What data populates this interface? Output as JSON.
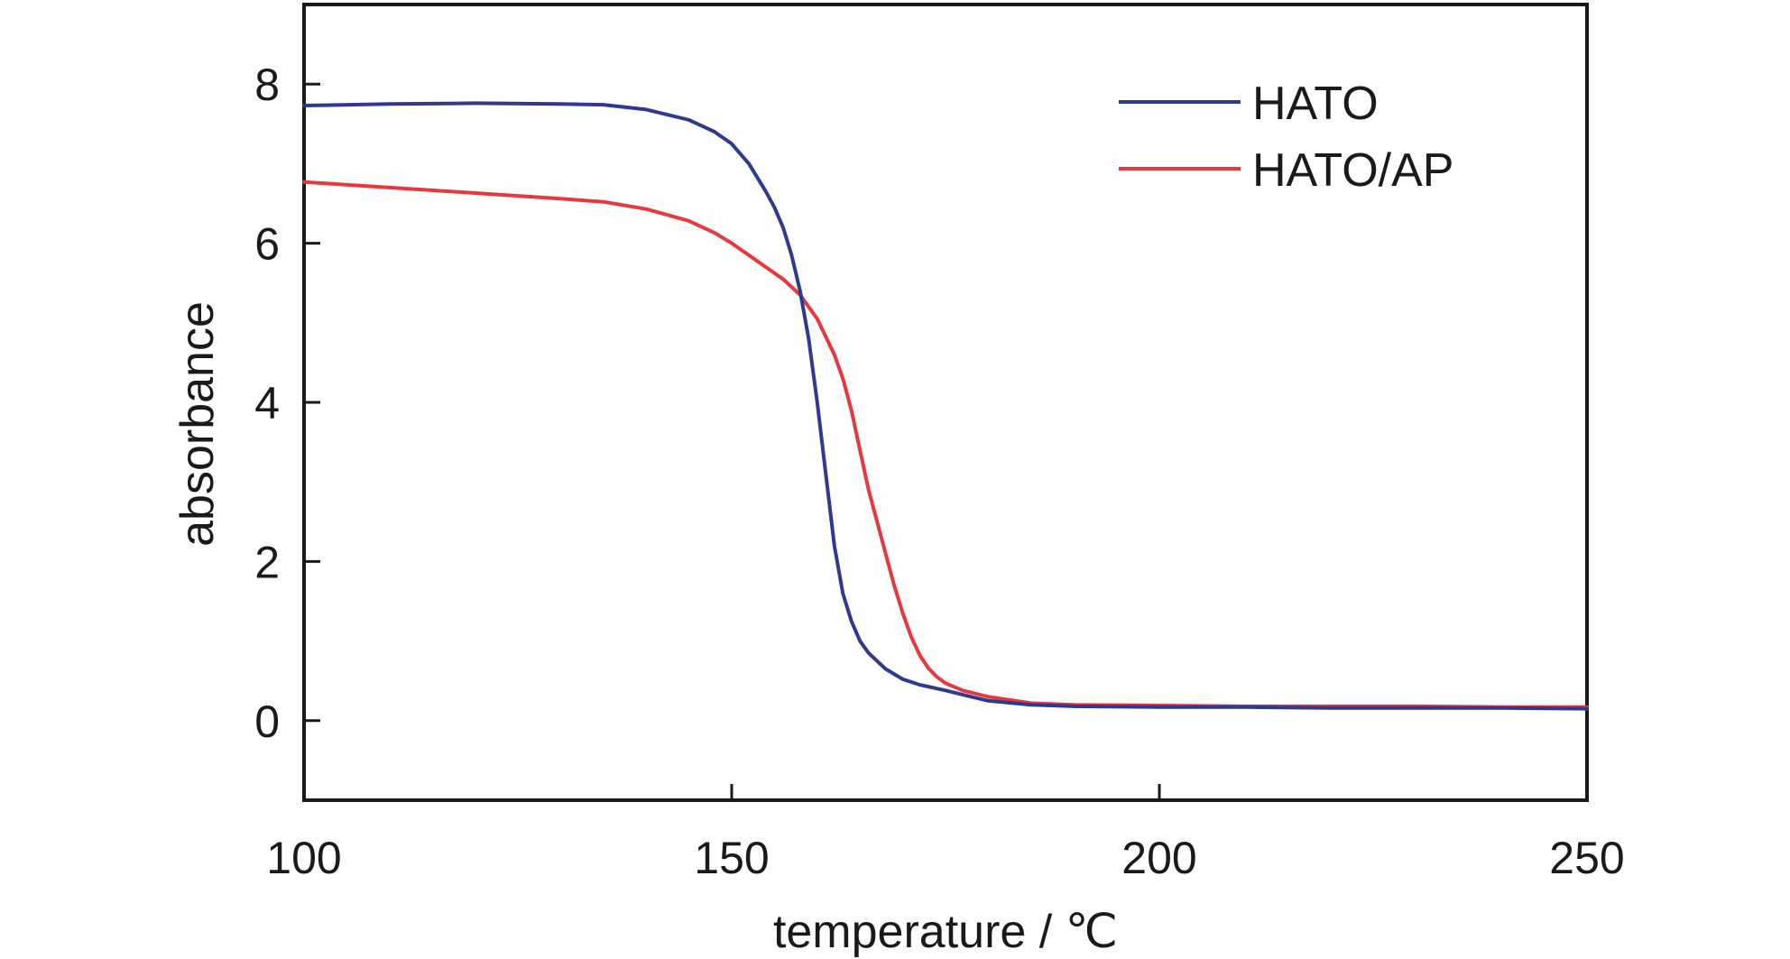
{
  "chart_data": {
    "type": "line",
    "xlabel": "temperature / ℃",
    "ylabel": "absorbance",
    "xlim": [
      100,
      250
    ],
    "ylim": [
      -1,
      9
    ],
    "xticks": [
      100,
      150,
      200,
      250
    ],
    "yticks": [
      0,
      2,
      4,
      6,
      8
    ],
    "grid": false,
    "legend_position": "top-right",
    "series": [
      {
        "name": "HATO",
        "color": "#2e3a8f",
        "x": [
          100,
          110,
          120,
          130,
          135,
          140,
          145,
          148,
          150,
          152,
          154,
          155,
          156,
          157,
          158,
          159,
          160,
          161,
          162,
          163,
          164,
          165,
          166,
          168,
          170,
          172,
          175,
          178,
          180,
          185,
          190,
          200,
          210,
          220,
          230,
          240,
          250
        ],
        "y": [
          7.73,
          7.75,
          7.76,
          7.75,
          7.74,
          7.68,
          7.55,
          7.4,
          7.25,
          7.0,
          6.65,
          6.45,
          6.2,
          5.85,
          5.4,
          4.8,
          4.0,
          3.1,
          2.2,
          1.6,
          1.25,
          1.0,
          0.85,
          0.65,
          0.52,
          0.45,
          0.38,
          0.3,
          0.25,
          0.2,
          0.18,
          0.17,
          0.17,
          0.16,
          0.16,
          0.16,
          0.15
        ]
      },
      {
        "name": "HATO/AP",
        "color": "#e8383d",
        "x": [
          100,
          110,
          120,
          130,
          135,
          140,
          145,
          148,
          150,
          152,
          154,
          156,
          158,
          160,
          162,
          163,
          164,
          165,
          166,
          167,
          168,
          169,
          170,
          171,
          172,
          173,
          174,
          175,
          177,
          180,
          185,
          190,
          200,
          210,
          220,
          230,
          240,
          250
        ],
        "y": [
          6.77,
          6.7,
          6.63,
          6.56,
          6.52,
          6.43,
          6.28,
          6.13,
          6.0,
          5.85,
          5.7,
          5.55,
          5.35,
          5.05,
          4.6,
          4.3,
          3.9,
          3.4,
          2.9,
          2.5,
          2.1,
          1.7,
          1.35,
          1.05,
          0.82,
          0.66,
          0.55,
          0.47,
          0.38,
          0.3,
          0.22,
          0.2,
          0.19,
          0.18,
          0.18,
          0.18,
          0.17,
          0.17
        ]
      }
    ]
  }
}
